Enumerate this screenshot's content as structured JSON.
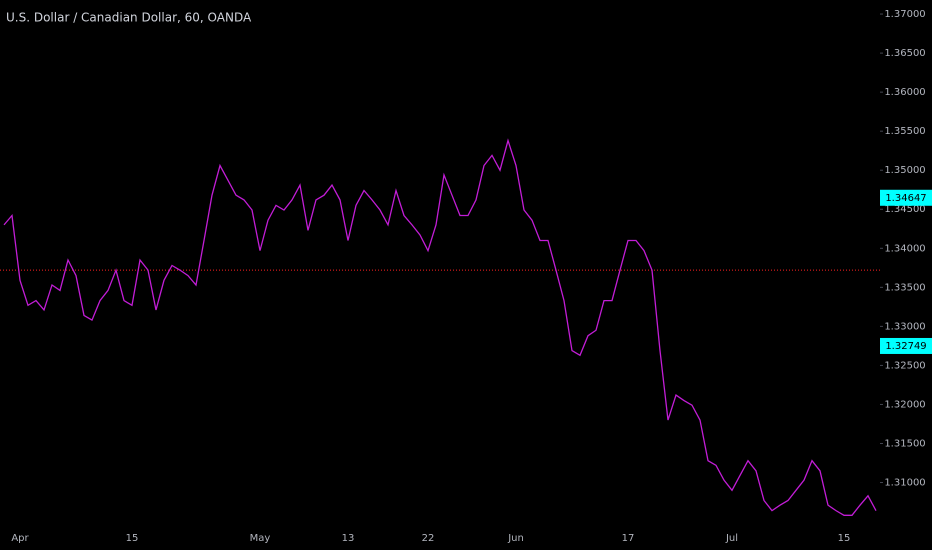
{
  "chart_data": {
    "type": "line",
    "title": "U.S. Dollar / Canadian Dollar, 60, OANDA",
    "categories": [
      null,
      null,
      "Apr",
      null,
      null,
      null,
      null,
      null,
      null,
      null,
      null,
      null,
      null,
      null,
      null,
      null,
      "15",
      null,
      null,
      null,
      null,
      null,
      null,
      null,
      null,
      null,
      null,
      null,
      null,
      null,
      null,
      null,
      "May",
      null,
      null,
      null,
      null,
      null,
      null,
      null,
      null,
      null,
      null,
      "13",
      null,
      null,
      null,
      null,
      null,
      null,
      null,
      null,
      null,
      "22",
      null,
      null,
      null,
      null,
      null,
      null,
      null,
      null,
      null,
      null,
      "Jun",
      null,
      null,
      null,
      null,
      null,
      null,
      null,
      null,
      null,
      null,
      null,
      null,
      null,
      "17",
      null,
      null,
      null,
      null,
      null,
      null,
      null,
      null,
      null,
      null,
      null,
      null,
      "Jul",
      null,
      null,
      null,
      null,
      null,
      null,
      null,
      null,
      null,
      null,
      null,
      null,
      null,
      "15",
      null,
      null,
      null,
      null
    ],
    "series": [
      {
        "name": "USD/CAD",
        "color": "#c21dd6",
        "values": [
          1.343,
          1.3442,
          1.3359,
          1.3327,
          1.3333,
          1.3321,
          1.3353,
          1.3346,
          1.3385,
          1.3365,
          1.3314,
          1.3308,
          1.3333,
          1.3346,
          1.3372,
          1.3333,
          1.3327,
          1.3385,
          1.3372,
          1.3321,
          1.3359,
          1.3378,
          1.3372,
          1.3365,
          1.3353,
          1.341,
          1.3468,
          1.3506,
          1.3487,
          1.3468,
          1.3462,
          1.3449,
          1.3397,
          1.3436,
          1.3455,
          1.3449,
          1.3462,
          1.3481,
          1.3423,
          1.3462,
          1.3468,
          1.3481,
          1.3462,
          1.341,
          1.3455,
          1.3474,
          1.3462,
          1.3449,
          1.343,
          1.3474,
          1.3442,
          1.343,
          1.3417,
          1.3397,
          1.343,
          1.3494,
          1.3468,
          1.3442,
          1.3442,
          1.3462,
          1.3506,
          1.3519,
          1.35,
          1.3538,
          1.3506,
          1.3449,
          1.3436,
          1.341,
          1.341,
          1.3372,
          1.3333,
          1.3269,
          1.3263,
          1.3288,
          1.3295,
          1.3333,
          1.3333,
          1.3372,
          1.341,
          1.341,
          1.3397,
          1.3372,
          1.3269,
          1.318,
          1.3212,
          1.3205,
          1.3199,
          1.318,
          1.3128,
          1.3122,
          1.3103,
          1.309,
          1.3109,
          1.3128,
          1.3115,
          1.3077,
          1.3064,
          1.3071,
          1.3077,
          1.309,
          1.3103,
          1.3128,
          1.3115,
          1.3071,
          1.3064,
          1.3058,
          1.3058,
          1.3071,
          1.3083,
          1.3064
        ]
      }
    ],
    "ylim": [
      1.3052,
      1.3718
    ],
    "yticks": [
      {
        "value": 1.37,
        "label": "1.37000"
      },
      {
        "value": 1.365,
        "label": "1.36500"
      },
      {
        "value": 1.36,
        "label": "1.36000"
      },
      {
        "value": 1.355,
        "label": "1.35500"
      },
      {
        "value": 1.35,
        "label": "1.35000"
      },
      {
        "value": 1.345,
        "label": "1.34500"
      },
      {
        "value": 1.34,
        "label": "1.34000"
      },
      {
        "value": 1.335,
        "label": "1.33500"
      },
      {
        "value": 1.33,
        "label": "1.33000"
      },
      {
        "value": 1.325,
        "label": "1.32500"
      },
      {
        "value": 1.32,
        "label": "1.32000"
      },
      {
        "value": 1.315,
        "label": "1.31500"
      },
      {
        "value": 1.31,
        "label": "1.31000"
      }
    ],
    "price_tags": [
      {
        "value": 1.34647,
        "label": "1.34647"
      },
      {
        "value": 1.32749,
        "label": "1.32749"
      }
    ],
    "tag_color": "#00ffff",
    "hline": 1.3372,
    "hline_color": "#ff2020"
  }
}
